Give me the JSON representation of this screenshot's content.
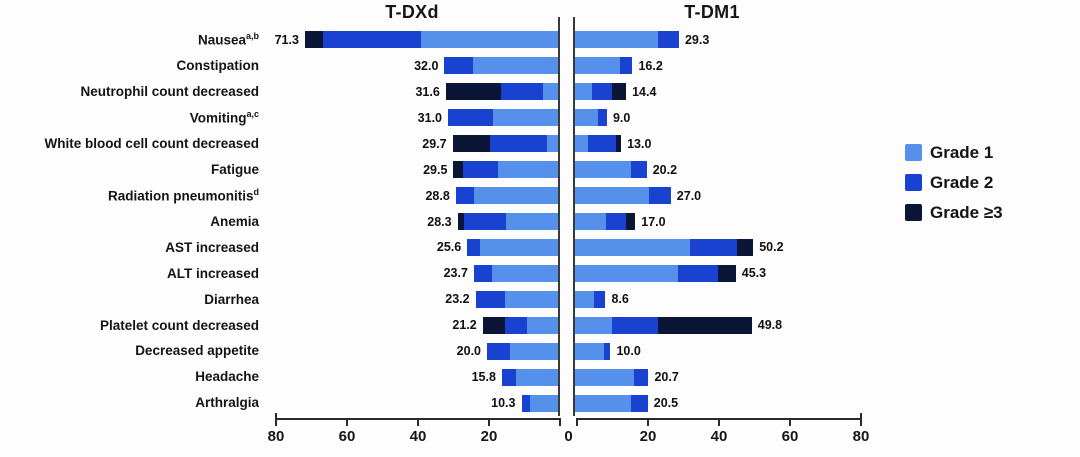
{
  "figure": {
    "group_titles": [
      "T-DXd",
      "T-DM1"
    ]
  },
  "legend": {
    "position": "right",
    "items": [
      {
        "label": "Grade 1",
        "color": "#5590ea"
      },
      {
        "label": "Grade 2",
        "color": "#1a42d0"
      },
      {
        "label": "Grade ≥3",
        "color": "#0b1535"
      }
    ]
  },
  "axis": {
    "ticks": [
      0,
      20,
      40,
      60,
      80
    ],
    "max": 80,
    "shared_zero_label": "0"
  },
  "chart_data": {
    "type": "bar",
    "subtype": "butterfly-stacked-horizontal",
    "title": "",
    "xlabel": "",
    "ylabel": "",
    "xlim_each_side": [
      0,
      80
    ],
    "grid": false,
    "legend_entries": [
      "Grade 1",
      "Grade 2",
      "Grade ≥3"
    ],
    "categories": [
      {
        "label": "Nausea",
        "sup": "a,b"
      },
      {
        "label": "Constipation",
        "sup": ""
      },
      {
        "label": "Neutrophil count decreased",
        "sup": ""
      },
      {
        "label": "Vomiting",
        "sup": "a,c"
      },
      {
        "label": "White blood cell count decreased",
        "sup": ""
      },
      {
        "label": "Fatigue",
        "sup": ""
      },
      {
        "label": "Radiation pneumonitis",
        "sup": "d"
      },
      {
        "label": "Anemia",
        "sup": ""
      },
      {
        "label": "AST increased",
        "sup": ""
      },
      {
        "label": "ALT increased",
        "sup": ""
      },
      {
        "label": "Diarrhea",
        "sup": ""
      },
      {
        "label": "Platelet count decreased",
        "sup": ""
      },
      {
        "label": "Decreased appetite",
        "sup": ""
      },
      {
        "label": "Headache",
        "sup": ""
      },
      {
        "label": "Arthralgia",
        "sup": ""
      }
    ],
    "series_groups": [
      {
        "name": "T-DXd",
        "side": "left",
        "totals": [
          71.3,
          32.0,
          31.6,
          31.0,
          29.7,
          29.5,
          28.8,
          28.3,
          25.6,
          23.7,
          23.2,
          21.2,
          20.0,
          15.8,
          10.3
        ],
        "grade1": [
          38.6,
          24.0,
          4.1,
          18.2,
          3.2,
          16.8,
          23.7,
          14.7,
          21.9,
          18.6,
          14.9,
          8.8,
          13.5,
          11.8,
          7.9
        ],
        "grade2": [
          27.6,
          8.0,
          11.9,
          12.8,
          15.9,
          9.9,
          5.1,
          11.7,
          3.7,
          5.1,
          8.3,
          6.1,
          6.5,
          4.0,
          2.4
        ],
        "grade3": [
          5.1,
          0,
          15.6,
          0,
          10.6,
          2.8,
          0,
          1.9,
          0,
          0,
          0,
          6.3,
          0,
          0,
          0
        ]
      },
      {
        "name": "T-DM1",
        "side": "right",
        "totals": [
          29.3,
          16.2,
          14.4,
          9.0,
          13.0,
          20.2,
          27.0,
          17.0,
          50.2,
          45.3,
          8.6,
          49.8,
          10.0,
          20.7,
          20.5
        ],
        "grade1": [
          23.3,
          12.7,
          4.9,
          6.5,
          3.7,
          15.8,
          20.8,
          8.6,
          32.4,
          28.9,
          5.3,
          10.5,
          8.1,
          16.5,
          15.8
        ],
        "grade2": [
          6.0,
          3.5,
          5.6,
          2.5,
          7.9,
          4.4,
          6.2,
          5.8,
          13.1,
          11.5,
          3.3,
          12.8,
          1.9,
          4.2,
          4.7
        ],
        "grade3": [
          0,
          0,
          3.9,
          0,
          1.4,
          0,
          0,
          2.6,
          4.7,
          4.9,
          0,
          26.5,
          0,
          0,
          0
        ]
      }
    ],
    "colors": {
      "grade1": "#5590ea",
      "grade2": "#1a42d0",
      "grade3": "#0b1535"
    }
  }
}
